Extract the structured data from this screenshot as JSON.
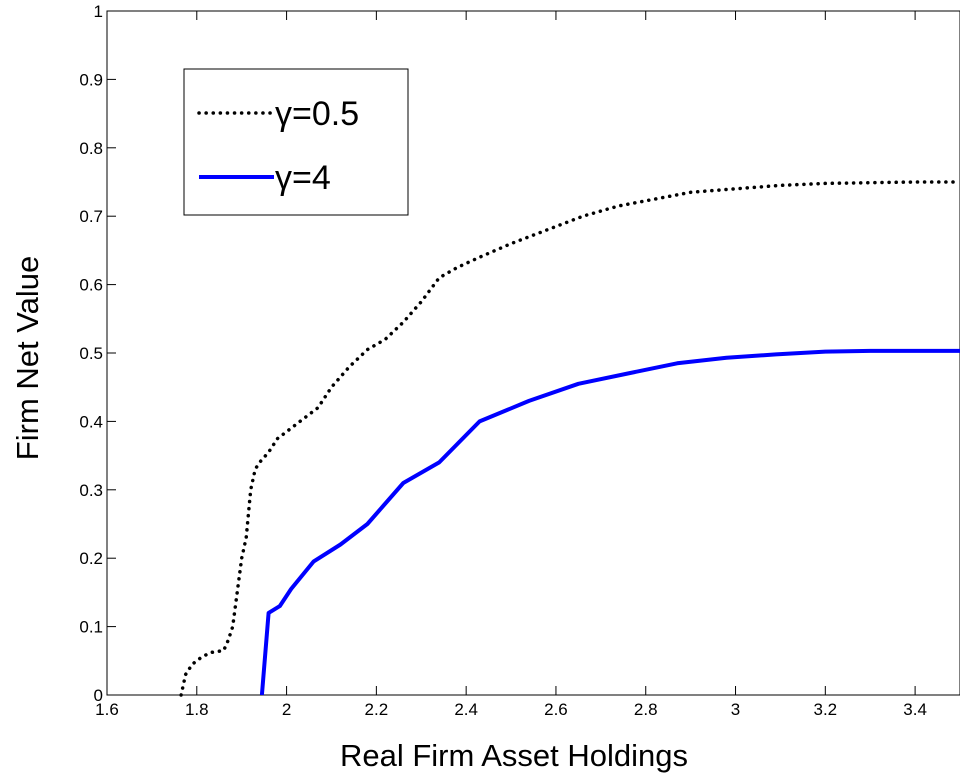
{
  "chart_data": {
    "type": "line",
    "xlabel": "Real Firm Asset Holdings",
    "ylabel": "Firm Net Value",
    "xlim": [
      1.6,
      3.5
    ],
    "ylim": [
      0,
      1
    ],
    "xticks": [
      1.6,
      1.8,
      2,
      2.2,
      2.4,
      2.6,
      2.8,
      3,
      3.2,
      3.4
    ],
    "xtick_labels": [
      "1.6",
      "1.8",
      "2",
      "2.2",
      "2.4",
      "2.6",
      "2.8",
      "3",
      "3.2",
      "3.4"
    ],
    "yticks": [
      0,
      0.1,
      0.2,
      0.3,
      0.4,
      0.5,
      0.6,
      0.7,
      0.8,
      0.9,
      1
    ],
    "ytick_labels": [
      "0",
      "0.1",
      "0.2",
      "0.3",
      "0.4",
      "0.5",
      "0.6",
      "0.7",
      "0.8",
      "0.9",
      "1"
    ],
    "grid": false,
    "legend_position": "top-left",
    "series": [
      {
        "name": "γ=0.5",
        "color": "#000000",
        "style": "dotted",
        "x": [
          1.765,
          1.775,
          1.79,
          1.81,
          1.83,
          1.86,
          1.87,
          1.88,
          1.89,
          1.9,
          1.91,
          1.92,
          1.93,
          1.94,
          1.96,
          1.98,
          2.0,
          2.03,
          2.07,
          2.1,
          2.14,
          2.18,
          2.22,
          2.26,
          2.3,
          2.34,
          2.38,
          2.43,
          2.5,
          2.58,
          2.66,
          2.74,
          2.82,
          2.9,
          3.0,
          3.1,
          3.2,
          3.3,
          3.4,
          3.5
        ],
        "y": [
          0.0,
          0.03,
          0.045,
          0.055,
          0.062,
          0.065,
          0.08,
          0.1,
          0.15,
          0.2,
          0.23,
          0.3,
          0.33,
          0.34,
          0.355,
          0.375,
          0.385,
          0.4,
          0.42,
          0.45,
          0.48,
          0.505,
          0.52,
          0.545,
          0.575,
          0.61,
          0.625,
          0.64,
          0.66,
          0.68,
          0.7,
          0.715,
          0.725,
          0.735,
          0.74,
          0.745,
          0.748,
          0.749,
          0.75,
          0.75
        ]
      },
      {
        "name": "γ=4",
        "color": "#0000FF",
        "style": "solid",
        "x": [
          1.945,
          1.96,
          1.985,
          2.01,
          2.06,
          2.12,
          2.18,
          2.26,
          2.34,
          2.43,
          2.54,
          2.65,
          2.76,
          2.87,
          2.98,
          3.09,
          3.2,
          3.3,
          3.4,
          3.5
        ],
        "y": [
          0.0,
          0.12,
          0.13,
          0.155,
          0.195,
          0.22,
          0.25,
          0.31,
          0.34,
          0.4,
          0.43,
          0.455,
          0.47,
          0.485,
          0.493,
          0.498,
          0.502,
          0.503,
          0.503,
          0.503
        ]
      }
    ]
  }
}
